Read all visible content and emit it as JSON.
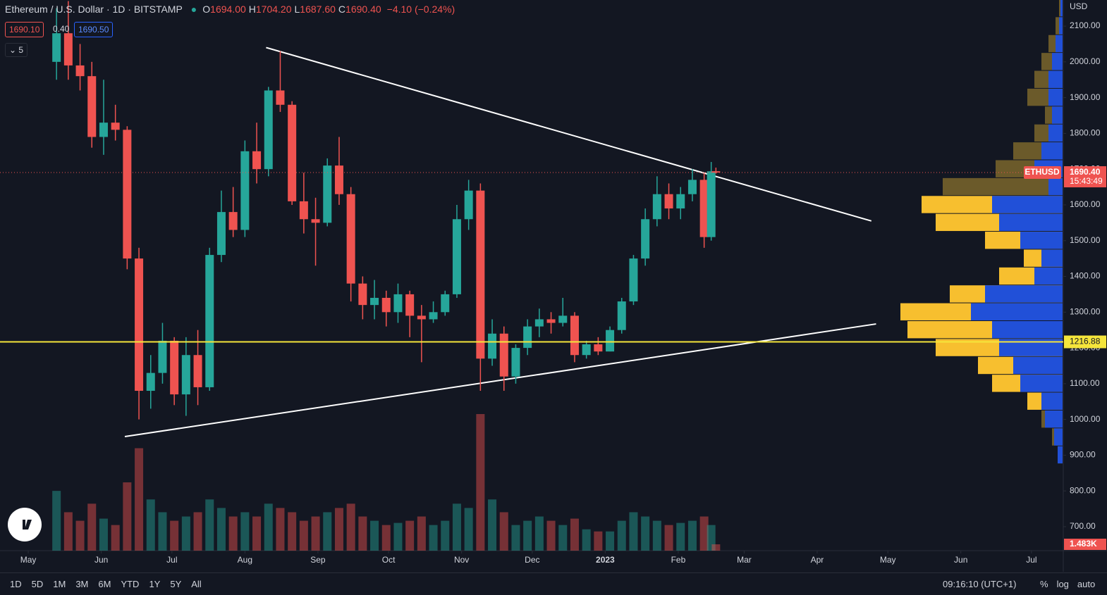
{
  "header": {
    "title": "Ethereum / U.S. Dollar · 1D · BITSTAMP",
    "ohlc": [
      {
        "k": "O",
        "v": "1694.00"
      },
      {
        "k": "H",
        "v": "1704.20"
      },
      {
        "k": "L",
        "v": "1687.60"
      },
      {
        "k": "C",
        "v": "1690.40"
      }
    ],
    "change": "−4.10 (−0.24%)",
    "bid": "1690.10",
    "spread": "0.40",
    "ask": "1690.50",
    "indicators": "5"
  },
  "toolbar": {
    "ranges": [
      "1D",
      "5D",
      "1M",
      "3M",
      "6M",
      "YTD",
      "1Y",
      "5Y",
      "All"
    ],
    "clock": "09:16:10 (UTC+1)",
    "options": [
      "%",
      "log",
      "auto"
    ]
  },
  "chart_data": {
    "type": "candlestick",
    "symbol": "ETHUSD",
    "currency": "USD",
    "up_color": "#26a69a",
    "down_color": "#ef5350",
    "x": [
      12,
      17,
      22,
      27,
      32,
      37,
      42,
      47,
      52,
      57,
      62,
      67,
      72,
      77,
      82,
      87,
      92,
      97,
      102,
      107,
      112,
      117,
      122,
      127,
      132,
      137,
      142,
      147,
      152,
      157,
      162,
      167,
      172,
      177,
      182,
      187,
      192,
      197,
      202,
      207,
      212,
      217,
      222,
      227,
      232,
      237,
      242,
      247,
      252,
      257,
      262,
      267,
      272,
      277,
      282,
      287,
      290,
      292
    ],
    "open": [
      2000,
      2080,
      1990,
      1960,
      1790,
      1830,
      1810,
      1450,
      1080,
      1130,
      1220,
      1070,
      1180,
      1090,
      1460,
      1580,
      1530,
      1750,
      1700,
      1920,
      1880,
      1610,
      1560,
      1550,
      1710,
      1630,
      1380,
      1320,
      1340,
      1300,
      1350,
      1290,
      1280,
      1300,
      1350,
      1560,
      1640,
      1170,
      1240,
      1120,
      1200,
      1260,
      1280,
      1270,
      1290,
      1180,
      1210,
      1190,
      1250,
      1330,
      1450,
      1560,
      1630,
      1590,
      1630,
      1670,
      1510,
      1694
    ],
    "high": [
      2150,
      2170,
      2050,
      2000,
      1950,
      1880,
      1820,
      1480,
      1180,
      1270,
      1230,
      1230,
      1250,
      1480,
      1640,
      1650,
      1780,
      1830,
      1930,
      2030,
      1890,
      1690,
      1620,
      1730,
      1790,
      1650,
      1400,
      1390,
      1360,
      1380,
      1360,
      1320,
      1330,
      1360,
      1600,
      1670,
      1660,
      1280,
      1260,
      1210,
      1280,
      1310,
      1300,
      1340,
      1300,
      1220,
      1230,
      1260,
      1340,
      1460,
      1590,
      1680,
      1660,
      1650,
      1700,
      1690,
      1720,
      1704.2
    ],
    "low": [
      1950,
      1950,
      1920,
      1760,
      1740,
      1780,
      1420,
      1000,
      1030,
      1100,
      1040,
      1010,
      1040,
      1080,
      1440,
      1510,
      1510,
      1660,
      1680,
      1860,
      1600,
      1520,
      1430,
      1540,
      1600,
      1330,
      1280,
      1280,
      1260,
      1270,
      1230,
      1160,
      1270,
      1290,
      1340,
      1530,
      1080,
      1150,
      1080,
      1100,
      1180,
      1230,
      1240,
      1260,
      1160,
      1170,
      1180,
      1190,
      1240,
      1320,
      1430,
      1540,
      1560,
      1560,
      1610,
      1480,
      1500,
      1687.6
    ],
    "close": [
      2080,
      1990,
      1960,
      1790,
      1830,
      1810,
      1450,
      1080,
      1130,
      1220,
      1070,
      1180,
      1090,
      1460,
      1580,
      1530,
      1750,
      1700,
      1920,
      1880,
      1610,
      1560,
      1550,
      1710,
      1630,
      1380,
      1320,
      1340,
      1300,
      1350,
      1290,
      1280,
      1300,
      1350,
      1560,
      1640,
      1170,
      1240,
      1120,
      1200,
      1260,
      1280,
      1270,
      1290,
      1180,
      1210,
      1190,
      1250,
      1330,
      1450,
      1560,
      1630,
      1590,
      1630,
      1670,
      1510,
      1694,
      1690.4
    ],
    "volume": [
      14000,
      9000,
      7000,
      11000,
      7500,
      6000,
      16000,
      24000,
      12000,
      9000,
      7000,
      8000,
      9000,
      12000,
      10000,
      8000,
      9000,
      8000,
      11000,
      10000,
      9000,
      7000,
      8000,
      9000,
      10000,
      11000,
      8000,
      7000,
      6000,
      6500,
      7000,
      8000,
      6000,
      7000,
      11000,
      10000,
      32000,
      12000,
      9000,
      6000,
      7000,
      8000,
      7000,
      6000,
      7500,
      5000,
      4500,
      4500,
      7000,
      9000,
      8000,
      7000,
      6000,
      6500,
      7000,
      8000,
      6000,
      1483
    ],
    "volume_label": "1.483K",
    "vlim": [
      0,
      129000
    ],
    "xlim": [
      -12,
      439.5
    ],
    "xticks": [
      {
        "value": 0,
        "label": "May"
      },
      {
        "value": 31,
        "label": "Jun"
      },
      {
        "value": 61,
        "label": "Jul"
      },
      {
        "value": 92,
        "label": "Aug"
      },
      {
        "value": 123,
        "label": "Sep"
      },
      {
        "value": 153,
        "label": "Oct"
      },
      {
        "value": 184,
        "label": "Nov"
      },
      {
        "value": 214,
        "label": "Dec"
      },
      {
        "value": 245,
        "label": "2023"
      },
      {
        "value": 276,
        "label": "Feb"
      },
      {
        "value": 304,
        "label": "Mar"
      },
      {
        "value": 335,
        "label": "Apr"
      },
      {
        "value": 365,
        "label": "May"
      },
      {
        "value": 396,
        "label": "Jun"
      },
      {
        "value": 426,
        "label": "Jul"
      }
    ],
    "ylim": [
      633,
      2173
    ],
    "yticks": [
      {
        "value": 700,
        "label": "700.00"
      },
      {
        "value": 800,
        "label": "800.00"
      },
      {
        "value": 900,
        "label": "900.00"
      },
      {
        "value": 1000,
        "label": "1000.00"
      },
      {
        "value": 1100,
        "label": "1100.00"
      },
      {
        "value": 1200,
        "label": "1200.00"
      },
      {
        "value": 1300,
        "label": "1300.00"
      },
      {
        "value": 1400,
        "label": "1400.00"
      },
      {
        "value": 1500,
        "label": "1500.00"
      },
      {
        "value": 1600,
        "label": "1600.00"
      },
      {
        "value": 1700,
        "label": "1700.00"
      },
      {
        "value": 1800,
        "label": "1800.00"
      },
      {
        "value": 1900,
        "label": "1900.00"
      },
      {
        "value": 2000,
        "label": "2000.00"
      },
      {
        "value": 2100,
        "label": "2100.00"
      }
    ],
    "last_price": {
      "value": 1690.4,
      "label": "1690.40",
      "countdown": "15:43:49"
    },
    "hline": {
      "value": 1216.88,
      "label": "1216.88",
      "color": "#f5e53b"
    },
    "lines": [
      {
        "x": [
          101,
          358
        ],
        "y": [
          2040,
          1555
        ]
      },
      {
        "x": [
          41,
          360
        ],
        "y": [
          952,
          1267
        ]
      }
    ],
    "volume_profile": {
      "prices": [
        900,
        950,
        1000,
        1050,
        1100,
        1150,
        1200,
        1250,
        1300,
        1350,
        1400,
        1450,
        1500,
        1550,
        1600,
        1650,
        1700,
        1750,
        1800,
        1850,
        1900,
        1950,
        2000,
        2050,
        2100,
        2150
      ],
      "total": [
        7,
        15,
        30,
        50,
        100,
        120,
        180,
        220,
        230,
        160,
        90,
        55,
        110,
        180,
        200,
        170,
        95,
        70,
        40,
        25,
        50,
        40,
        30,
        20,
        10,
        5
      ],
      "up": [
        7,
        12,
        25,
        30,
        60,
        70,
        90,
        100,
        130,
        110,
        40,
        30,
        60,
        90,
        100,
        20,
        40,
        30,
        20,
        15,
        20,
        20,
        15,
        10,
        5,
        3
      ],
      "value_area": [
        1040,
        1640
      ],
      "xlim": [
        0,
        300
      ]
    }
  }
}
